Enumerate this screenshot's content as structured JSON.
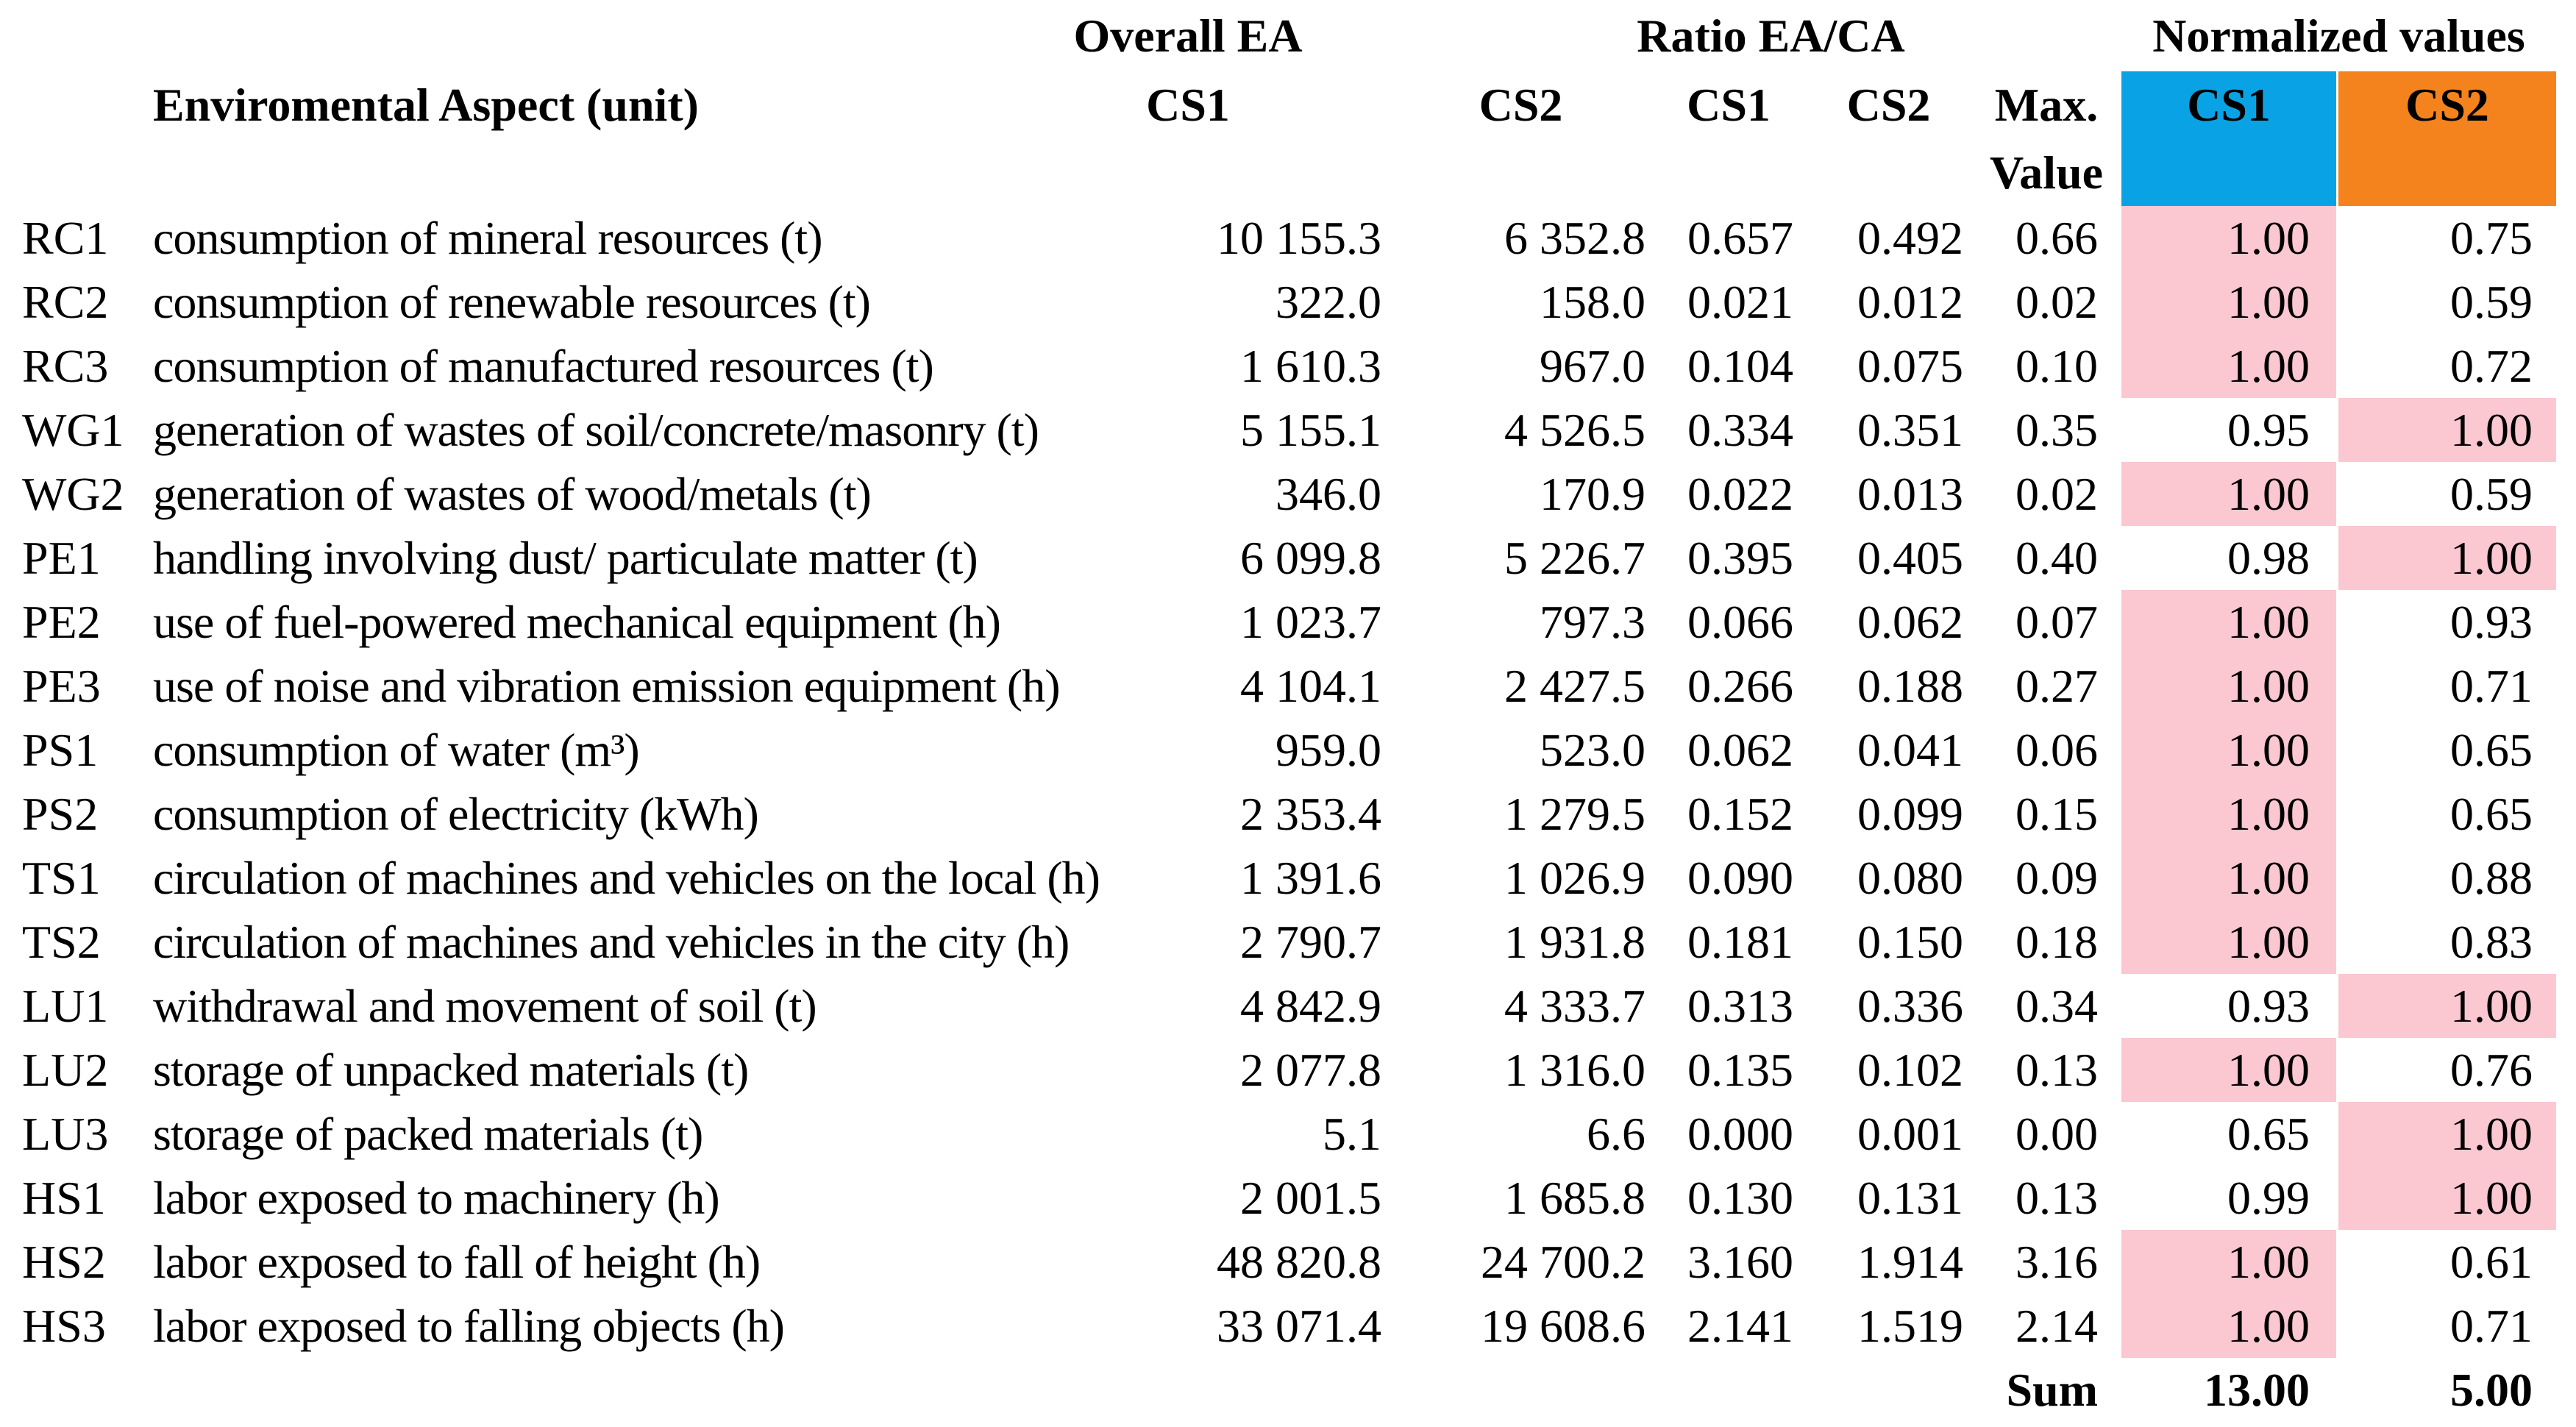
{
  "table": {
    "groups": {
      "overall": "Overall EA",
      "ratio": "Ratio EA/CA",
      "normalized": "Normalized values"
    },
    "header": {
      "aspect": "Enviromental Aspect (unit)",
      "overall_cs1": "CS1",
      "overall_cs2": "CS2",
      "ratio_cs1": "CS1",
      "ratio_cs2": "CS2",
      "max_line1": "Max.",
      "max_line2": "Value",
      "norm_cs1": "CS1",
      "norm_cs2": "CS2"
    },
    "colors": {
      "norm_cs1_header_bg": "#09A3E5",
      "norm_cs2_header_bg": "#F5831D",
      "highlight_pink": "#FBC8D1"
    },
    "rows": [
      {
        "id": "RC1",
        "aspect": "consumption of mineral resources (t)",
        "overall_cs1": "10 155.3",
        "overall_cs2": "6 352.8",
        "ratio_cs1": "0.657",
        "ratio_cs2": "0.492",
        "max": "0.66",
        "norm_cs1": "1.00",
        "norm_cs2": "0.75",
        "highlight_cs1": true,
        "highlight_cs2": false
      },
      {
        "id": "RC2",
        "aspect": "consumption of renewable resources (t)",
        "overall_cs1": "322.0",
        "overall_cs2": "158.0",
        "ratio_cs1": "0.021",
        "ratio_cs2": "0.012",
        "max": "0.02",
        "norm_cs1": "1.00",
        "norm_cs2": "0.59",
        "highlight_cs1": true,
        "highlight_cs2": false
      },
      {
        "id": "RC3",
        "aspect": "consumption of manufactured resources (t)",
        "overall_cs1": "1 610.3",
        "overall_cs2": "967.0",
        "ratio_cs1": "0.104",
        "ratio_cs2": "0.075",
        "max": "0.10",
        "norm_cs1": "1.00",
        "norm_cs2": "0.72",
        "highlight_cs1": true,
        "highlight_cs2": false
      },
      {
        "id": "WG1",
        "aspect": "generation of wastes of soil/concrete/masonry (t)",
        "overall_cs1": "5 155.1",
        "overall_cs2": "4 526.5",
        "ratio_cs1": "0.334",
        "ratio_cs2": "0.351",
        "max": "0.35",
        "norm_cs1": "0.95",
        "norm_cs2": "1.00",
        "highlight_cs1": false,
        "highlight_cs2": true
      },
      {
        "id": "WG2",
        "aspect": "generation of wastes of wood/metals (t)",
        "overall_cs1": "346.0",
        "overall_cs2": "170.9",
        "ratio_cs1": "0.022",
        "ratio_cs2": "0.013",
        "max": "0.02",
        "norm_cs1": "1.00",
        "norm_cs2": "0.59",
        "highlight_cs1": true,
        "highlight_cs2": false
      },
      {
        "id": "PE1",
        "aspect": "handling involving dust/ particulate matter (t)",
        "overall_cs1": "6 099.8",
        "overall_cs2": "5 226.7",
        "ratio_cs1": "0.395",
        "ratio_cs2": "0.405",
        "max": "0.40",
        "norm_cs1": "0.98",
        "norm_cs2": "1.00",
        "highlight_cs1": false,
        "highlight_cs2": true
      },
      {
        "id": "PE2",
        "aspect": "use of fuel-powered mechanical equipment (h)",
        "overall_cs1": "1 023.7",
        "overall_cs2": "797.3",
        "ratio_cs1": "0.066",
        "ratio_cs2": "0.062",
        "max": "0.07",
        "norm_cs1": "1.00",
        "norm_cs2": "0.93",
        "highlight_cs1": true,
        "highlight_cs2": false
      },
      {
        "id": "PE3",
        "aspect": "use of noise and vibration emission equipment (h)",
        "overall_cs1": "4 104.1",
        "overall_cs2": "2 427.5",
        "ratio_cs1": "0.266",
        "ratio_cs2": "0.188",
        "max": "0.27",
        "norm_cs1": "1.00",
        "norm_cs2": "0.71",
        "highlight_cs1": true,
        "highlight_cs2": false
      },
      {
        "id": "PS1",
        "aspect": "consumption of water (m³)",
        "overall_cs1": "959.0",
        "overall_cs2": "523.0",
        "ratio_cs1": "0.062",
        "ratio_cs2": "0.041",
        "max": "0.06",
        "norm_cs1": "1.00",
        "norm_cs2": "0.65",
        "highlight_cs1": true,
        "highlight_cs2": false
      },
      {
        "id": "PS2",
        "aspect": "consumption of electricity (kWh)",
        "overall_cs1": "2 353.4",
        "overall_cs2": "1 279.5",
        "ratio_cs1": "0.152",
        "ratio_cs2": "0.099",
        "max": "0.15",
        "norm_cs1": "1.00",
        "norm_cs2": "0.65",
        "highlight_cs1": true,
        "highlight_cs2": false
      },
      {
        "id": "TS1",
        "aspect": "circulation of machines and vehicles on the local (h)",
        "overall_cs1": "1 391.6",
        "overall_cs2": "1 026.9",
        "ratio_cs1": "0.090",
        "ratio_cs2": "0.080",
        "max": "0.09",
        "norm_cs1": "1.00",
        "norm_cs2": "0.88",
        "highlight_cs1": true,
        "highlight_cs2": false
      },
      {
        "id": "TS2",
        "aspect": "circulation of machines and vehicles in the city (h)",
        "overall_cs1": "2 790.7",
        "overall_cs2": "1 931.8",
        "ratio_cs1": "0.181",
        "ratio_cs2": "0.150",
        "max": "0.18",
        "norm_cs1": "1.00",
        "norm_cs2": "0.83",
        "highlight_cs1": true,
        "highlight_cs2": false
      },
      {
        "id": "LU1",
        "aspect": "withdrawal and movement of soil (t)",
        "overall_cs1": "4 842.9",
        "overall_cs2": "4 333.7",
        "ratio_cs1": "0.313",
        "ratio_cs2": "0.336",
        "max": "0.34",
        "norm_cs1": "0.93",
        "norm_cs2": "1.00",
        "highlight_cs1": false,
        "highlight_cs2": true
      },
      {
        "id": "LU2",
        "aspect": "storage of unpacked materials (t)",
        "overall_cs1": "2 077.8",
        "overall_cs2": "1 316.0",
        "ratio_cs1": "0.135",
        "ratio_cs2": "0.102",
        "max": "0.13",
        "norm_cs1": "1.00",
        "norm_cs2": "0.76",
        "highlight_cs1": true,
        "highlight_cs2": false
      },
      {
        "id": "LU3",
        "aspect": "storage of packed materials (t)",
        "overall_cs1": "5.1",
        "overall_cs2": "6.6",
        "ratio_cs1": "0.000",
        "ratio_cs2": "0.001",
        "max": "0.00",
        "norm_cs1": "0.65",
        "norm_cs2": "1.00",
        "highlight_cs1": false,
        "highlight_cs2": true
      },
      {
        "id": "HS1",
        "aspect": "labor exposed to machinery (h)",
        "overall_cs1": "2 001.5",
        "overall_cs2": "1 685.8",
        "ratio_cs1": "0.130",
        "ratio_cs2": "0.131",
        "max": "0.13",
        "norm_cs1": "0.99",
        "norm_cs2": "1.00",
        "highlight_cs1": false,
        "highlight_cs2": true
      },
      {
        "id": "HS2",
        "aspect": "labor exposed to fall of height (h)",
        "overall_cs1": "48 820.8",
        "overall_cs2": "24 700.2",
        "ratio_cs1": "3.160",
        "ratio_cs2": "1.914",
        "max": "3.16",
        "norm_cs1": "1.00",
        "norm_cs2": "0.61",
        "highlight_cs1": true,
        "highlight_cs2": false
      },
      {
        "id": "HS3",
        "aspect": "labor exposed to falling objects (h)",
        "overall_cs1": "33 071.4",
        "overall_cs2": "19 608.6",
        "ratio_cs1": "2.141",
        "ratio_cs2": "1.519",
        "max": "2.14",
        "norm_cs1": "1.00",
        "norm_cs2": "0.71",
        "highlight_cs1": true,
        "highlight_cs2": false
      }
    ],
    "sum": {
      "label": "Sum",
      "norm_cs1": "13.00",
      "norm_cs2": "5.00"
    }
  }
}
